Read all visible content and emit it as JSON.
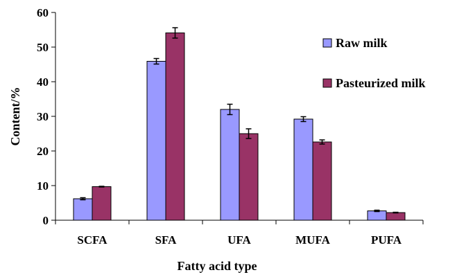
{
  "chart_data": {
    "type": "bar",
    "title": "",
    "xlabel": "Fatty acid type",
    "ylabel": "Content/%",
    "ylim": [
      0,
      60
    ],
    "yticks": [
      0,
      10,
      20,
      30,
      40,
      50,
      60
    ],
    "grid": false,
    "legend_position": "right",
    "categories": [
      "SCFA",
      "SFA",
      "UFA",
      "MUFA",
      "PUFA"
    ],
    "series": [
      {
        "name": "Raw milk",
        "color": "#9999ff",
        "values": [
          6.2,
          45.9,
          32.0,
          29.2,
          2.7
        ],
        "errors": [
          0.3,
          0.8,
          1.5,
          0.7,
          0.2
        ]
      },
      {
        "name": "Pasteurized milk",
        "color": "#993366",
        "values": [
          9.7,
          54.1,
          25.0,
          22.6,
          2.2
        ],
        "errors": [
          0.1,
          1.5,
          1.4,
          0.6,
          0.1
        ]
      }
    ]
  }
}
